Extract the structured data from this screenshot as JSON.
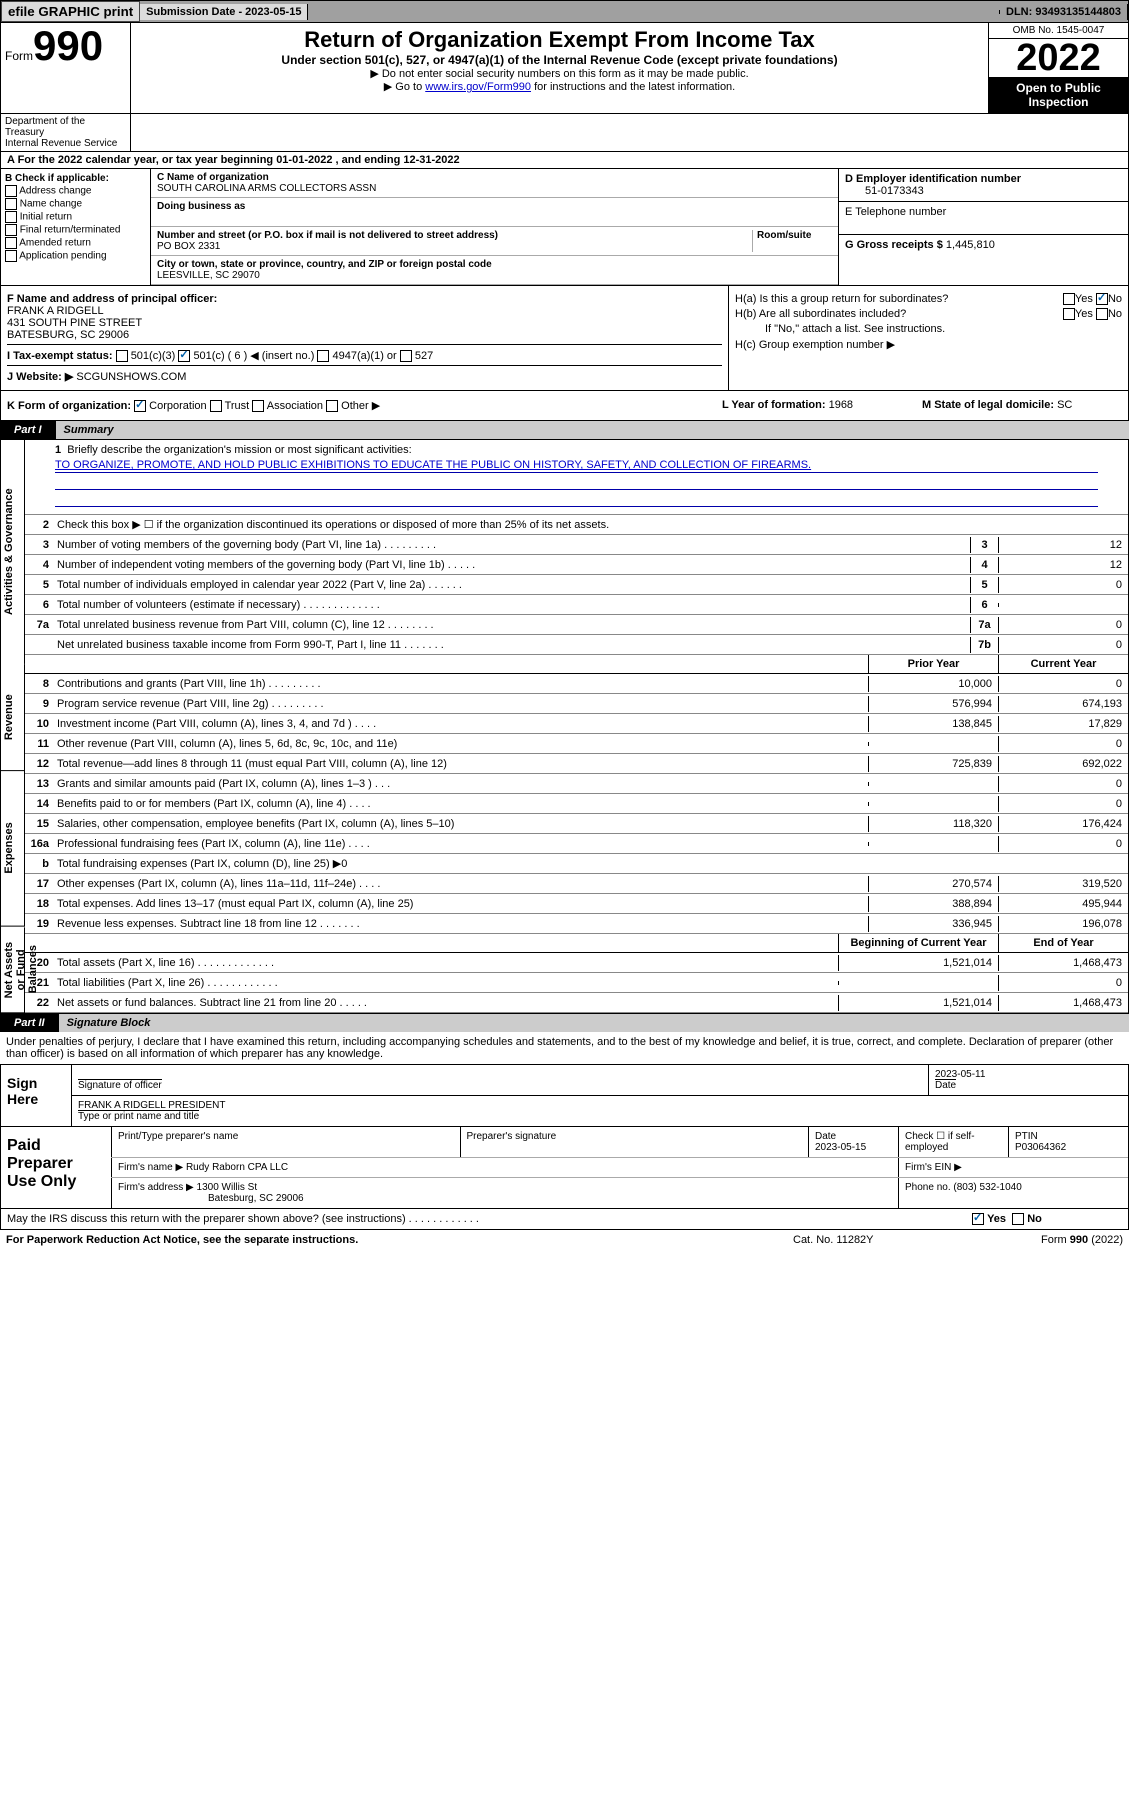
{
  "topbar": {
    "efile_btn": "efile GRAPHIC print",
    "sub_lbl": "Submission Date - 2023-05-15",
    "dln_lbl": "DLN: 93493135144803"
  },
  "header": {
    "form_label": "Form",
    "form_number": "990",
    "title": "Return of Organization Exempt From Income Tax",
    "subtitle1": "Under section 501(c), 527, or 4947(a)(1) of the Internal Revenue Code (except private foundations)",
    "subtitle2": "▶ Do not enter social security numbers on this form as it may be made public.",
    "subtitle3_pre": "▶ Go to ",
    "subtitle3_link": "www.irs.gov/Form990",
    "subtitle3_post": " for instructions and the latest information.",
    "omb": "OMB No. 1545-0047",
    "year": "2022",
    "open": "Open to Public Inspection",
    "dept": "Department of the Treasury\nInternal Revenue Service"
  },
  "line_a": "A For the 2022 calendar year, or tax year beginning 01-01-2022   , and ending 12-31-2022",
  "col_b": {
    "label": "B Check if applicable:",
    "items": [
      "Address change",
      "Name change",
      "Initial return",
      "Final return/terminated",
      "Amended return",
      "Application pending"
    ]
  },
  "col_c": {
    "name_lbl": "C Name of organization",
    "name": "SOUTH CAROLINA ARMS COLLECTORS ASSN",
    "dba_lbl": "Doing business as",
    "addr_lbl": "Number and street (or P.O. box if mail is not delivered to street address)",
    "room_lbl": "Room/suite",
    "addr": "PO BOX 2331",
    "city_lbl": "City or town, state or province, country, and ZIP or foreign postal code",
    "city": "LEESVILLE, SC  29070"
  },
  "col_de": {
    "d_lbl": "D Employer identification number",
    "d_val": "51-0173343",
    "e_lbl": "E Telephone number",
    "g_lbl": "G Gross receipts $",
    "g_val": "1,445,810"
  },
  "f_block": {
    "f_lbl": "F Name and address of principal officer:",
    "f_name": "FRANK A RIDGELL",
    "f_addr1": "431 SOUTH PINE STREET",
    "f_addr2": "BATESBURG, SC  29006",
    "i_lbl": "I   Tax-exempt status:",
    "i_501c3": "501(c)(3)",
    "i_501c": "501(c) ( 6 ) ◀ (insert no.)",
    "i_4947": "4947(a)(1) or",
    "i_527": "527",
    "j_lbl": "J   Website: ▶",
    "j_val": "SCGUNSHOWS.COM"
  },
  "h_block": {
    "ha": "H(a)  Is this a group return for subordinates?",
    "ha_yes": "Yes",
    "ha_no": "No",
    "hb": "H(b)  Are all subordinates included?",
    "hb_yes": "Yes",
    "hb_no": "No",
    "hb_note": "If \"No,\" attach a list. See instructions.",
    "hc": "H(c)  Group exemption number ▶"
  },
  "klm": {
    "k_lbl": "K Form of organization:",
    "k_corp": "Corporation",
    "k_trust": "Trust",
    "k_assn": "Association",
    "k_other": "Other ▶",
    "l_lbl": "L Year of formation:",
    "l_val": "1968",
    "m_lbl": "M State of legal domicile:",
    "m_val": "SC"
  },
  "part1": {
    "tag": "Part I",
    "title": "Summary",
    "q1": "Briefly describe the organization's mission or most significant activities:",
    "mission": "TO ORGANIZE, PROMOTE, AND HOLD PUBLIC EXHIBITIONS TO EDUCATE THE PUBLIC ON HISTORY, SAFETY, AND COLLECTION OF FIREARMS.",
    "q2": "Check this box ▶ ☐ if the organization discontinued its operations or disposed of more than 25% of its net assets.",
    "governance": [
      {
        "n": "3",
        "d": "Number of voting members of the governing body (Part VI, line 1a)  .   .   .   .   .   .   .   .   .",
        "v": "12"
      },
      {
        "n": "4",
        "d": "Number of independent voting members of the governing body (Part VI, line 1b)  .   .   .   .   .",
        "v": "12"
      },
      {
        "n": "5",
        "d": "Total number of individuals employed in calendar year 2022 (Part V, line 2a)  .   .   .   .   .   .",
        "v": "0"
      },
      {
        "n": "6",
        "d": "Total number of volunteers (estimate if necessary)  .   .   .   .   .   .   .   .   .   .   .   .   .",
        "v": ""
      },
      {
        "n": "7a",
        "d": "Total unrelated business revenue from Part VIII, column (C), line 12  .   .   .   .   .   .   .   .",
        "v": "0"
      },
      {
        "n": "",
        "d": "Net unrelated business taxable income from Form 990-T, Part I, line 11  .   .   .   .   .   .   .",
        "b": "7b",
        "v": "0"
      }
    ],
    "hdr_prior": "Prior Year",
    "hdr_curr": "Current Year",
    "revenue": [
      {
        "n": "8",
        "d": "Contributions and grants (Part VIII, line 1h)  .   .   .   .   .   .   .   .   .",
        "p": "10,000",
        "c": "0"
      },
      {
        "n": "9",
        "d": "Program service revenue (Part VIII, line 2g)  .   .   .   .   .   .   .   .   .",
        "p": "576,994",
        "c": "674,193"
      },
      {
        "n": "10",
        "d": "Investment income (Part VIII, column (A), lines 3, 4, and 7d )  .   .   .   .",
        "p": "138,845",
        "c": "17,829"
      },
      {
        "n": "11",
        "d": "Other revenue (Part VIII, column (A), lines 5, 6d, 8c, 9c, 10c, and 11e)",
        "p": "",
        "c": "0"
      },
      {
        "n": "12",
        "d": "Total revenue—add lines 8 through 11 (must equal Part VIII, column (A), line 12)",
        "p": "725,839",
        "c": "692,022"
      }
    ],
    "expenses": [
      {
        "n": "13",
        "d": "Grants and similar amounts paid (Part IX, column (A), lines 1–3 )  .   .   .",
        "p": "",
        "c": "0"
      },
      {
        "n": "14",
        "d": "Benefits paid to or for members (Part IX, column (A), line 4)  .   .   .   .",
        "p": "",
        "c": "0"
      },
      {
        "n": "15",
        "d": "Salaries, other compensation, employee benefits (Part IX, column (A), lines 5–10)",
        "p": "118,320",
        "c": "176,424"
      },
      {
        "n": "16a",
        "d": "Professional fundraising fees (Part IX, column (A), line 11e)  .   .   .   .",
        "p": "",
        "c": "0"
      },
      {
        "n": "b",
        "d": "Total fundraising expenses (Part IX, column (D), line 25) ▶0",
        "nogrid": true
      },
      {
        "n": "17",
        "d": "Other expenses (Part IX, column (A), lines 11a–11d, 11f–24e)  .   .   .   .",
        "p": "270,574",
        "c": "319,520"
      },
      {
        "n": "18",
        "d": "Total expenses. Add lines 13–17 (must equal Part IX, column (A), line 25)",
        "p": "388,894",
        "c": "495,944"
      },
      {
        "n": "19",
        "d": "Revenue less expenses. Subtract line 18 from line 12  .   .   .   .   .   .   .",
        "p": "336,945",
        "c": "196,078"
      }
    ],
    "hdr_beg": "Beginning of Current Year",
    "hdr_end": "End of Year",
    "netassets": [
      {
        "n": "20",
        "d": "Total assets (Part X, line 16)  .   .   .   .   .   .   .   .   .   .   .   .   .",
        "p": "1,521,014",
        "c": "1,468,473"
      },
      {
        "n": "21",
        "d": "Total liabilities (Part X, line 26)  .   .   .   .   .   .   .   .   .   .   .   .",
        "p": "",
        "c": "0"
      },
      {
        "n": "22",
        "d": "Net assets or fund balances. Subtract line 21 from line 20  .   .   .   .   .",
        "p": "1,521,014",
        "c": "1,468,473"
      }
    ],
    "vtab_gov": "Activities & Governance",
    "vtab_rev": "Revenue",
    "vtab_exp": "Expenses",
    "vtab_net": "Net Assets or Fund Balances"
  },
  "part2": {
    "tag": "Part II",
    "title": "Signature Block",
    "decl": "Under penalties of perjury, I declare that I have examined this return, including accompanying schedules and statements, and to the best of my knowledge and belief, it is true, correct, and complete. Declaration of preparer (other than officer) is based on all information of which preparer has any knowledge.",
    "sign_here": "Sign Here",
    "sig_lbl": "Signature of officer",
    "date_lbl": "Date",
    "sig_date": "2023-05-11",
    "name_title": "FRANK A RIDGELL  PRESIDENT",
    "name_lbl": "Type or print name and title",
    "paid": "Paid Preparer Use Only",
    "pt_name_lbl": "Print/Type preparer's name",
    "pt_sig_lbl": "Preparer's signature",
    "pt_date_lbl": "Date",
    "pt_date": "2023-05-15",
    "pt_check_lbl": "Check ☐ if self-employed",
    "ptin_lbl": "PTIN",
    "ptin": "P03064362",
    "firm_name_lbl": "Firm's name    ▶",
    "firm_name": "Rudy Raborn CPA LLC",
    "firm_ein_lbl": "Firm's EIN ▶",
    "firm_addr_lbl": "Firm's address ▶",
    "firm_addr1": "1300 Willis St",
    "firm_addr2": "Batesburg, SC  29006",
    "firm_phone_lbl": "Phone no.",
    "firm_phone": "(803) 532-1040"
  },
  "footer": {
    "discuss": "May the IRS discuss this return with the preparer shown above? (see instructions)  .   .   .   .   .   .   .   .   .   .   .   .",
    "yes": "Yes",
    "no": "No",
    "paperwork": "For Paperwork Reduction Act Notice, see the separate instructions.",
    "catno": "Cat. No. 11282Y",
    "formyr": "Form 990 (2022)"
  }
}
